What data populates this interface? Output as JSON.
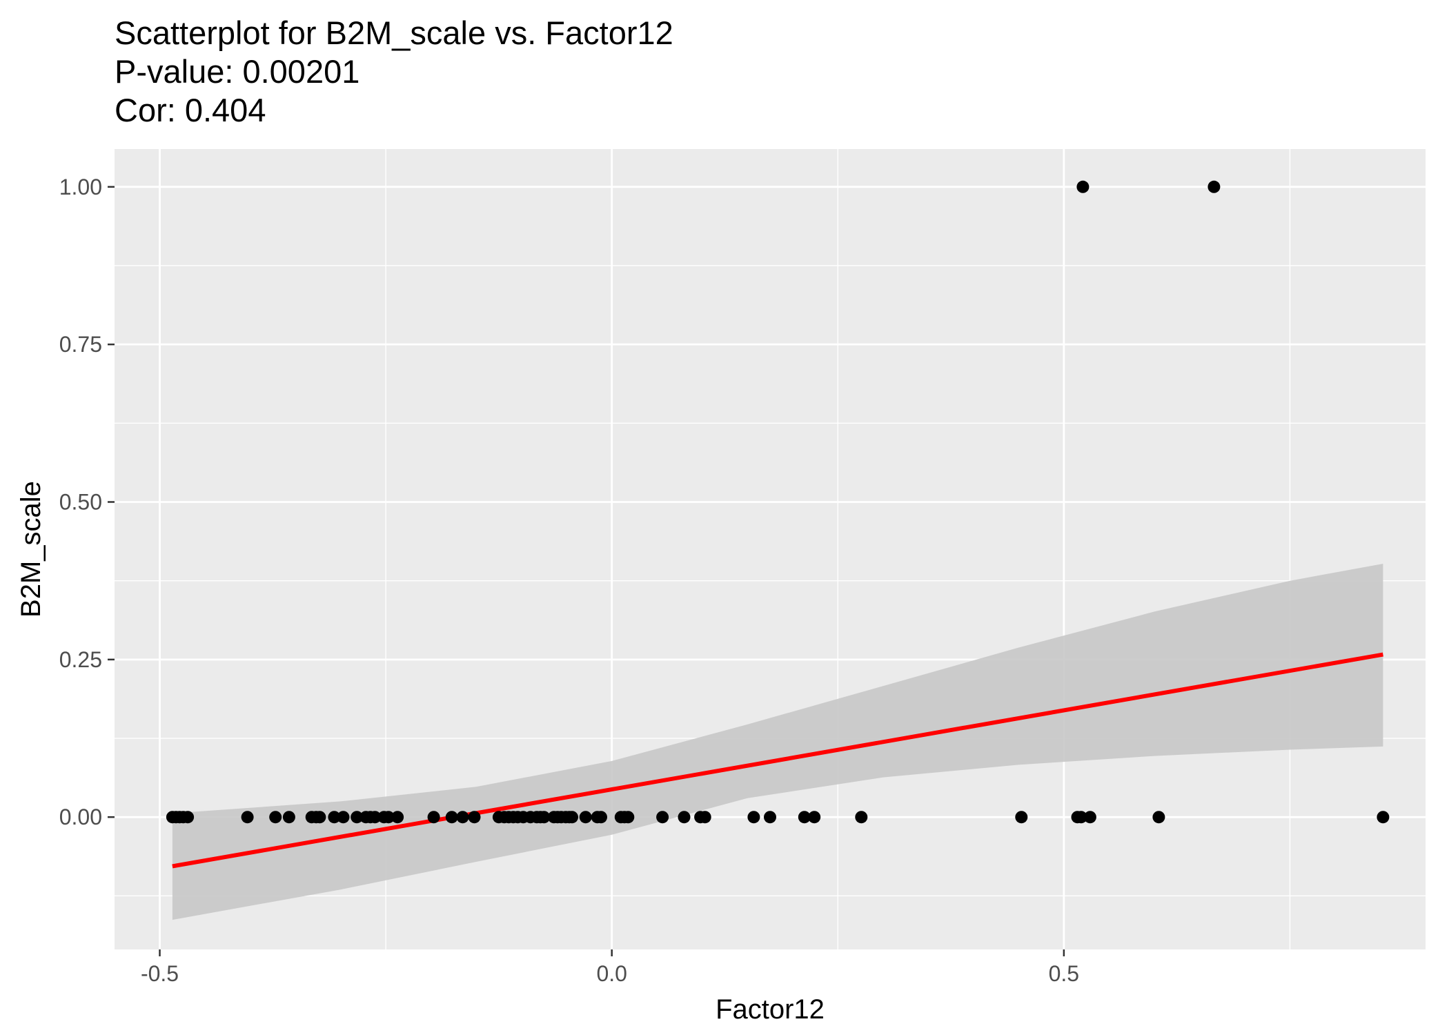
{
  "chart_data": {
    "type": "scatter",
    "title": [
      "Scatterplot for B2M_scale vs. Factor12",
      "P-value: 0.00201",
      "Cor: 0.404"
    ],
    "xlabel": "Factor12",
    "ylabel": "B2M_scale",
    "xlim": [
      -0.55,
      0.9
    ],
    "ylim": [
      -0.21,
      1.06
    ],
    "x_ticks": [
      -0.5,
      0.0,
      0.5
    ],
    "x_tick_labels": [
      "-0.5",
      "0.0",
      "0.5"
    ],
    "y_ticks": [
      0.0,
      0.25,
      0.5,
      0.75,
      1.0
    ],
    "y_tick_labels": [
      "0.00",
      "0.25",
      "0.50",
      "0.75",
      "1.00"
    ],
    "grid": true,
    "colors": {
      "panel": "#EBEBEB",
      "grid": "#FFFFFF",
      "points": "#000000",
      "fit_line": "#FF0000",
      "ribbon": "#C8C8C8",
      "tick_label": "#4D4D4D"
    },
    "points": {
      "x": [
        -0.486,
        -0.482,
        -0.478,
        -0.474,
        -0.469,
        -0.403,
        -0.372,
        -0.357,
        -0.332,
        -0.327,
        -0.323,
        -0.307,
        -0.297,
        -0.282,
        -0.272,
        -0.267,
        -0.262,
        -0.252,
        -0.247,
        -0.237,
        -0.197,
        -0.177,
        -0.165,
        -0.152,
        -0.125,
        -0.119,
        -0.114,
        -0.109,
        -0.104,
        -0.098,
        -0.09,
        -0.083,
        -0.079,
        -0.075,
        -0.064,
        -0.06,
        -0.056,
        -0.051,
        -0.047,
        -0.044,
        -0.029,
        -0.016,
        -0.012,
        0.01,
        0.014,
        0.018,
        0.056,
        0.08,
        0.098,
        0.103,
        0.157,
        0.175,
        0.213,
        0.224,
        0.276,
        0.453,
        0.515,
        0.519,
        0.529,
        0.605,
        0.853,
        0.521,
        0.666
      ],
      "y": [
        0,
        0,
        0,
        0,
        0,
        0,
        0,
        0,
        0,
        0,
        0,
        0,
        0,
        0,
        0,
        0,
        0,
        0,
        0,
        0,
        0,
        0,
        0,
        0,
        0,
        0,
        0,
        0,
        0,
        0,
        0,
        0,
        0,
        0,
        0,
        0,
        0,
        0,
        0,
        0,
        0,
        0,
        0,
        0,
        0,
        0,
        0,
        0,
        0,
        0,
        0,
        0,
        0,
        0,
        0,
        0,
        0,
        0,
        0,
        0,
        0,
        1,
        1
      ]
    },
    "fit": {
      "x": [
        -0.486,
        0.853
      ],
      "y": [
        -0.078,
        0.258
      ]
    },
    "confidence_band": {
      "x": [
        -0.486,
        -0.3,
        -0.15,
        0.0,
        0.15,
        0.3,
        0.45,
        0.6,
        0.75,
        0.853
      ],
      "lower": [
        -0.163,
        -0.115,
        -0.071,
        -0.028,
        0.03,
        0.063,
        0.083,
        0.097,
        0.107,
        0.112
      ],
      "upper": [
        0.006,
        0.025,
        0.048,
        0.089,
        0.147,
        0.208,
        0.269,
        0.326,
        0.375,
        0.402
      ]
    }
  }
}
